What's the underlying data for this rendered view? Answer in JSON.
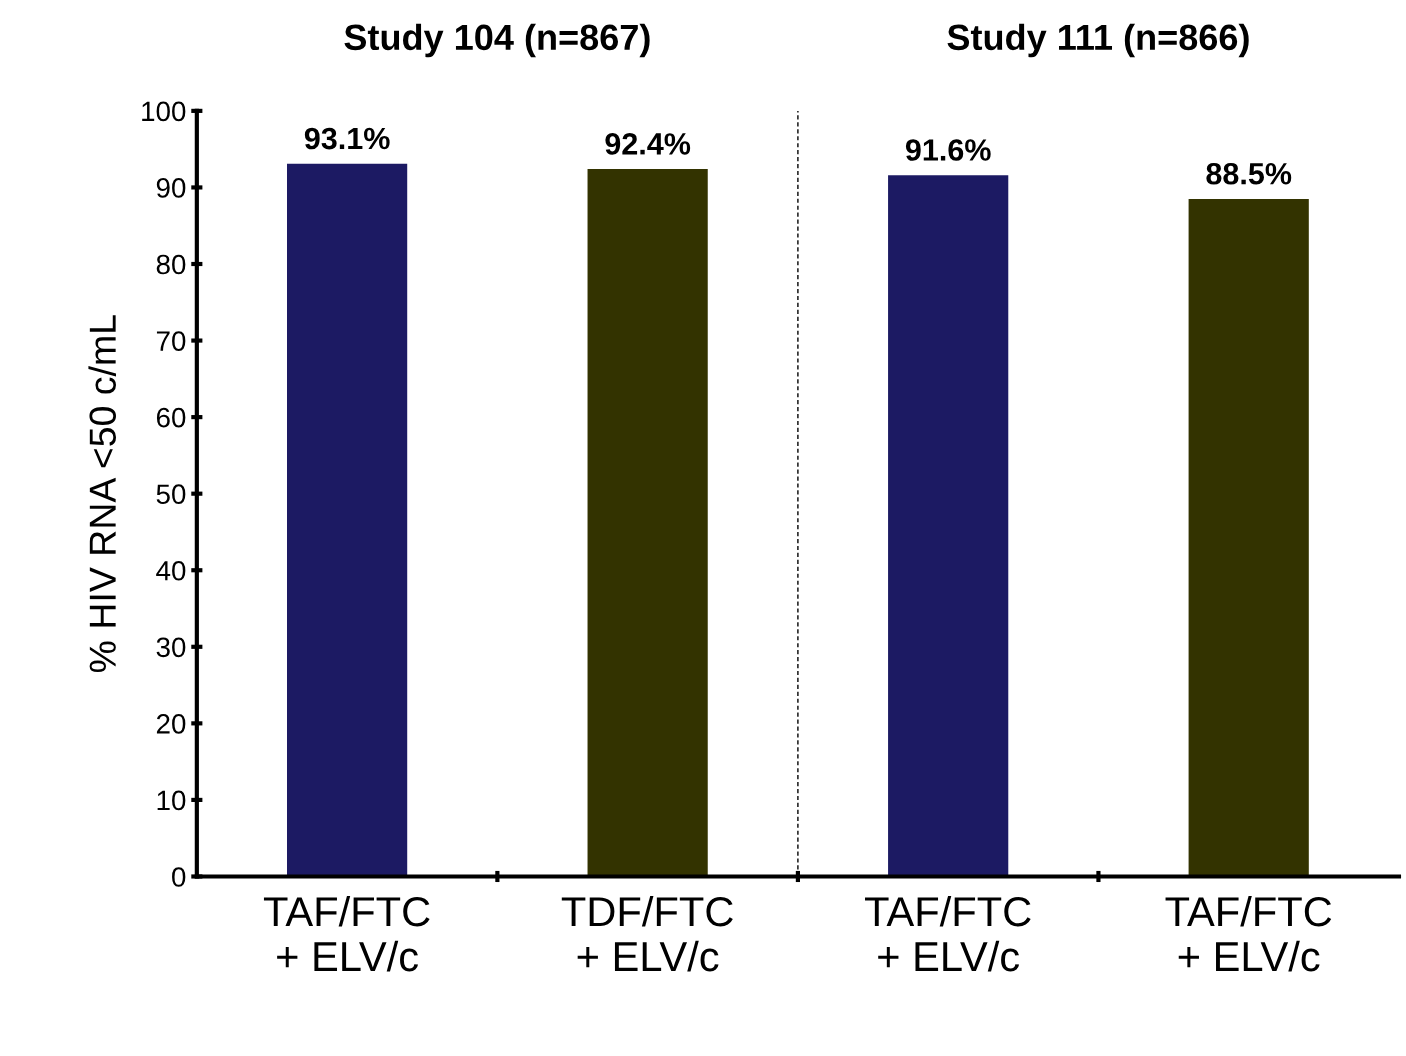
{
  "chart_data": {
    "type": "bar",
    "ylabel": "% HIV RNA <50 c/mL",
    "categories": [
      "TAF/FTC\n+ ELV/c",
      "TDF/FTC\n+ ELV/c",
      "TAF/FTC\n+ ELV/c",
      "TAF/FTC\n+ ELV/c"
    ],
    "values": [
      93.1,
      92.4,
      91.6,
      88.5
    ],
    "colors": [
      "#1c1a63",
      "#333300",
      "#1c1a63",
      "#333300"
    ],
    "value_labels": [
      "93.1%",
      "92.4%",
      "91.6%",
      "88.5%"
    ],
    "ylim": [
      0,
      100
    ],
    "yticks": [
      0,
      10,
      20,
      30,
      40,
      50,
      60,
      70,
      80,
      90,
      100
    ],
    "annotations": [
      "Study 104 (n=867)",
      "Study 111 (n=866)"
    ],
    "grid": false,
    "legend": false
  }
}
